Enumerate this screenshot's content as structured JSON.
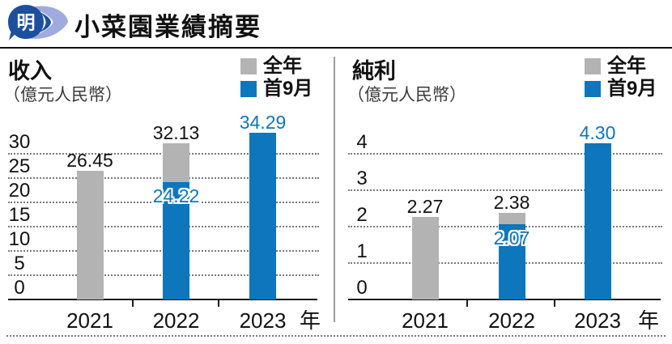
{
  "header": {
    "logo_char": "明",
    "title": "小菜園業績摘要"
  },
  "colors": {
    "full_year_gray": "#b3b3b3",
    "first9m_blue": "#0e76ba",
    "label_black": "#111111",
    "logo_navy": "#1c4f9e",
    "logo_light_blue": "#9fabdc"
  },
  "chart_data": [
    {
      "type": "bar",
      "title": "收入",
      "unit": "（億元人民幣）",
      "x_suffix": "年",
      "categories": [
        "2021",
        "2022",
        "2023"
      ],
      "y_ticks": [
        30,
        25,
        20,
        15,
        10,
        5,
        0
      ],
      "ylim": [
        0,
        35
      ],
      "grid": "dotted-horizontal",
      "legend_position": "top-right",
      "series": [
        {
          "name": "全年",
          "color": "#b3b3b3",
          "label_color": "#111111",
          "values": [
            26.45,
            32.13,
            null
          ]
        },
        {
          "name": "首9月",
          "color": "#0e76ba",
          "label_color": "#0e76ba",
          "values": [
            null,
            24.22,
            34.29
          ]
        }
      ]
    },
    {
      "type": "bar",
      "title": "純利",
      "unit": "（億元人民幣）",
      "x_suffix": "年",
      "categories": [
        "2021",
        "2022",
        "2023"
      ],
      "y_ticks": [
        4,
        3,
        2,
        1,
        0
      ],
      "ylim": [
        0,
        4.5
      ],
      "grid": "dotted-horizontal",
      "legend_position": "top-right",
      "series": [
        {
          "name": "全年",
          "color": "#b3b3b3",
          "label_color": "#111111",
          "values": [
            2.27,
            2.38,
            null
          ]
        },
        {
          "name": "首9月",
          "color": "#0e76ba",
          "label_color": "#0e76ba",
          "values": [
            null,
            2.07,
            4.3
          ]
        }
      ]
    }
  ]
}
